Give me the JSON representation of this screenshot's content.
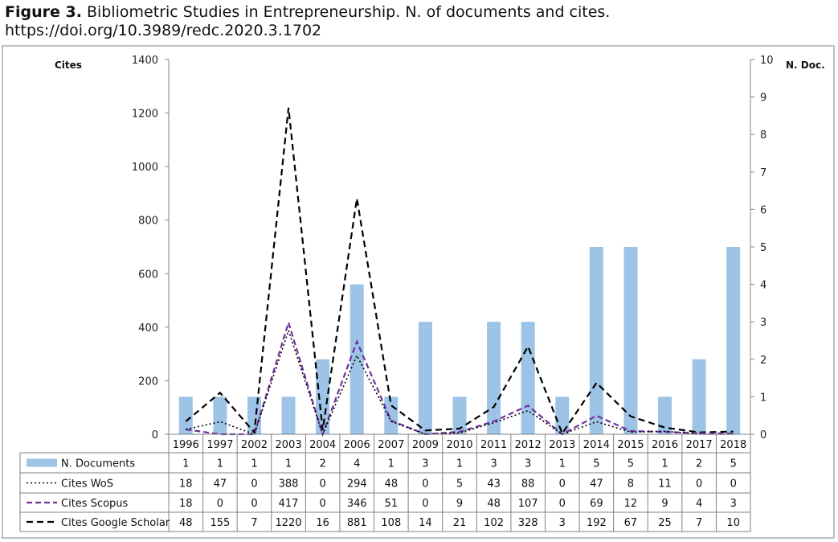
{
  "figure": {
    "label": "Figure 3.",
    "title": "Bibliometric Studies in Entrepreneurship. N. of documents and cites.",
    "doi": "https://doi.org/10.3989/redc.2020.3.1702"
  },
  "colors": {
    "bar": "#9DC3E6",
    "wos": "#000000",
    "scopus": "#7030A0",
    "google": "#000000",
    "grid": "#bfbfbf"
  },
  "chart_data": {
    "type": "bar",
    "categories": [
      "1996",
      "1997",
      "2002",
      "2003",
      "2004",
      "2006",
      "2007",
      "2009",
      "2010",
      "2011",
      "2012",
      "2013",
      "2014",
      "2015",
      "2016",
      "2017",
      "2018"
    ],
    "y_left": {
      "label": "Cites",
      "range": [
        0,
        1400
      ],
      "ticks": [
        "0",
        "200",
        "400",
        "600",
        "800",
        "1000",
        "1200",
        "1400"
      ]
    },
    "y_right": {
      "label": "N. Doc.",
      "range": [
        0,
        10
      ],
      "ticks": [
        "0",
        "1",
        "2",
        "3",
        "4",
        "5",
        "6",
        "7",
        "8",
        "9",
        "10"
      ]
    },
    "series": [
      {
        "name": "N. Documents",
        "type": "bar",
        "axis": "right",
        "values": [
          1,
          1,
          1,
          1,
          2,
          4,
          1,
          3,
          1,
          3,
          3,
          1,
          5,
          5,
          1,
          2,
          5
        ]
      },
      {
        "name": "Cites WoS",
        "type": "line",
        "style": "dotted",
        "axis": "left",
        "values": [
          18,
          47,
          0,
          388,
          0,
          294,
          48,
          0,
          5,
          43,
          88,
          0,
          47,
          8,
          11,
          0,
          0
        ]
      },
      {
        "name": "Cites Scopus",
        "type": "line",
        "style": "dashed",
        "axis": "left",
        "values": [
          18,
          0,
          0,
          417,
          0,
          346,
          51,
          0,
          9,
          48,
          107,
          0,
          69,
          12,
          9,
          4,
          3
        ]
      },
      {
        "name": "Cites Google Scholar",
        "type": "line",
        "style": "dashed",
        "axis": "left",
        "values": [
          48,
          155,
          7,
          1220,
          16,
          881,
          108,
          14,
          21,
          102,
          328,
          3,
          192,
          67,
          25,
          7,
          10
        ]
      }
    ],
    "table_display": [
      [
        "1",
        "1",
        "1",
        "1",
        "2",
        "4",
        "1",
        "3",
        "1",
        "3",
        "3",
        "1",
        "5",
        "5",
        "1",
        "2",
        "5"
      ],
      [
        "18",
        "47",
        "0",
        "388",
        "0",
        "294",
        "48",
        "0",
        "5",
        "43",
        "88",
        "0",
        "47",
        "8",
        "11",
        "0",
        "0"
      ],
      [
        "18",
        "0",
        "0",
        "417",
        "0",
        "346",
        "51",
        "0",
        "9",
        "48",
        "107",
        "0",
        "69",
        "12",
        "9",
        "4",
        "3"
      ],
      [
        "48",
        "155",
        "7",
        "1220",
        "16",
        "881",
        "108",
        "14",
        "21",
        "102",
        "328",
        "3",
        "192",
        "67",
        "25",
        "7",
        "10"
      ]
    ],
    "grid": false,
    "legend": "data-table"
  }
}
